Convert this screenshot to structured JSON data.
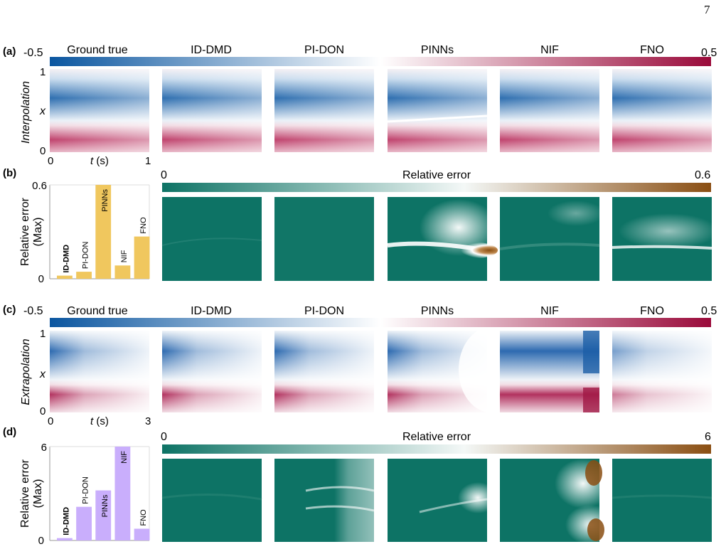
{
  "page_number": "7",
  "panels": {
    "a": {
      "tag": "(a)",
      "row_label": "Interpolation"
    },
    "b": {
      "tag": "(b)"
    },
    "c": {
      "tag": "(c)",
      "row_label": "Extrapolation"
    },
    "d": {
      "tag": "(d)"
    }
  },
  "methods": [
    "Ground true",
    "ID-DMD",
    "PI-DON",
    "PINNs",
    "NIF",
    "FNO"
  ],
  "solution_colorbar": {
    "min": "-0.5",
    "max": "0.5",
    "colors": [
      "#0b56a0",
      "#ffffff",
      "#9a0a3a"
    ]
  },
  "error_colorbar": {
    "label": "Relative error",
    "colors": [
      "#0d7365",
      "#ffffff",
      "#8a4e12"
    ]
  },
  "axes": {
    "x_label_italic": "x",
    "t_label": "t (s)",
    "interp": {
      "x_ticks": [
        "0",
        "1"
      ],
      "t_ticks": [
        "0",
        "1"
      ]
    },
    "extrap": {
      "x_ticks": [
        "0",
        "1"
      ],
      "t_ticks": [
        "0",
        "3"
      ]
    }
  },
  "chart_data": [
    {
      "type": "bar",
      "categories": [
        "ID-DMD",
        "PI-DON",
        "PINNs",
        "NIF",
        "FNO"
      ],
      "values": [
        0.02,
        0.045,
        0.6,
        0.085,
        0.27
      ],
      "ylim": [
        0,
        0.6
      ],
      "yticks": [
        "0",
        "0.6"
      ],
      "ylabel": "Relative error",
      "ylabel_sub": "(Max)",
      "colorbar_min": "0",
      "colorbar_max": "0.6",
      "bar_color": "#f0c75e",
      "bold_category": "ID-DMD"
    },
    {
      "type": "bar",
      "categories": [
        "ID-DMD",
        "PI-DON",
        "PINNs",
        "NIF",
        "FNO"
      ],
      "values": [
        0.15,
        2.15,
        3.2,
        6.0,
        0.75
      ],
      "ylim": [
        0,
        6
      ],
      "yticks": [
        "0",
        "6"
      ],
      "ylabel": "Relative error",
      "ylabel_sub": "(Max)",
      "colorbar_min": "0",
      "colorbar_max": "6",
      "bar_color": "#c9aefc",
      "bold_category": "ID-DMD"
    }
  ]
}
